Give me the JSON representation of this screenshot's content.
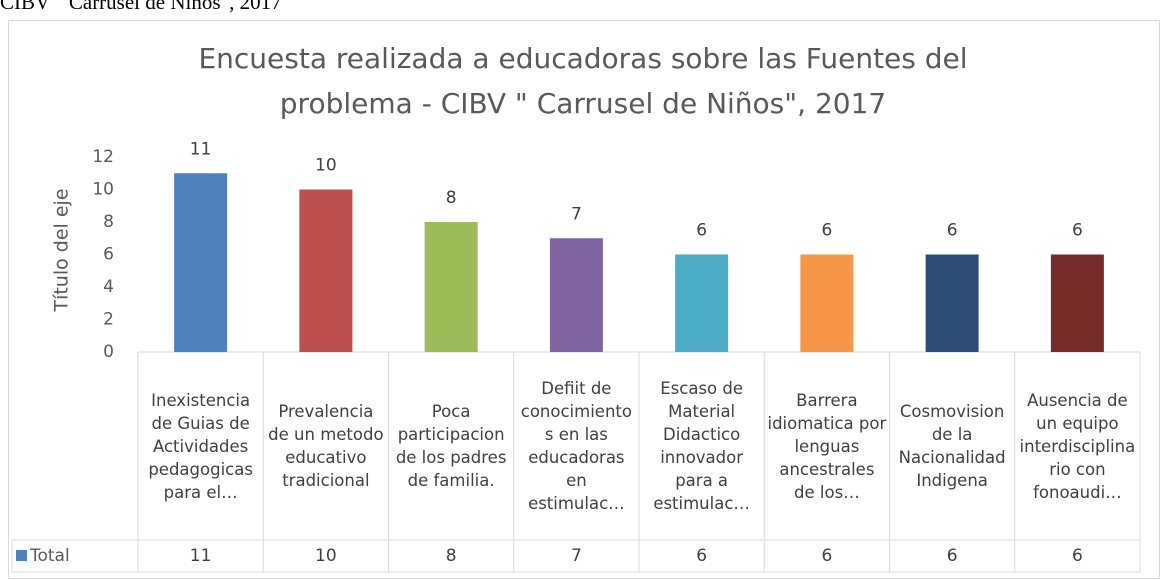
{
  "caption": "CIBV \" Carrusel de Niños\", 2017",
  "chart_data": {
    "type": "bar",
    "title": "Encuesta realizada a educadoras sobre las Fuentes del problema  - CIBV \" Carrusel de Niños\", 2017",
    "y_label": "Título del eje",
    "categories": [
      "Inexistencia de Guias de Actividades pedagogicas para el…",
      "Prevalencia de un metodo educativo tradicional",
      "Poca participacion de los padres de familia.",
      "Defiit de conocimientos en las educadoras en estimulac…",
      "Escaso de Material Didactico innovador para a estimulac…",
      "Barrera idiomatica por lenguas ancestrales de los…",
      "Cosmovision de la Nacionalidad Indigena",
      "Ausencia de un equipo interdisciplinario con fonoaudi…"
    ],
    "series": [
      {
        "name": "Total",
        "color": "#4f81bd",
        "point_colors": [
          "#4f81bd",
          "#c0504d",
          "#9bbb59",
          "#8064a2",
          "#4bacc6",
          "#f79646",
          "#2c4d75",
          "#772c2a"
        ],
        "values": [
          11,
          10,
          8,
          7,
          6,
          6,
          6,
          6
        ]
      }
    ],
    "ylim": [
      0,
      12
    ],
    "yticks": [
      0,
      2,
      4,
      6,
      8,
      10,
      12
    ],
    "grid": false,
    "data_table": true
  }
}
